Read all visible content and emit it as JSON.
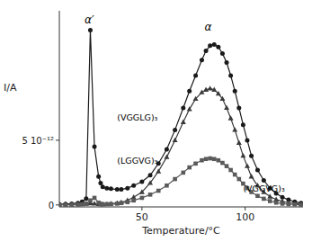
{
  "chart_data": {
    "type": "line",
    "x_label": "Temperature/°C",
    "y_label": "I/A",
    "xlim": [
      10,
      128
    ],
    "ylim": [
      -1.5e-13,
      1.5e-11
    ],
    "xticks": [
      50,
      100
    ],
    "yticks": [
      0,
      {
        "value": 5e-12,
        "label": "5 10⁻¹²"
      }
    ],
    "grid": false,
    "x": [
      10,
      13,
      16,
      19,
      21,
      23,
      25,
      27,
      29,
      30,
      31,
      33,
      35,
      38,
      40,
      43,
      46,
      50,
      54,
      58,
      62,
      66,
      70,
      73,
      76,
      79,
      81,
      83,
      85,
      87,
      89,
      91,
      93,
      95,
      97,
      99,
      101,
      103,
      106,
      109,
      112,
      115,
      118,
      121,
      124,
      127
    ],
    "series": [
      {
        "marker": "circle",
        "color": "#1a1a1a",
        "values": [
          5e-14,
          7e-14,
          1e-13,
          1.5e-13,
          2.5e-13,
          5e-13,
          1.35e-11,
          4.5e-12,
          2.2e-12,
          1.7e-12,
          1.4e-12,
          1.3e-12,
          1.25e-12,
          1.2e-12,
          1.2e-12,
          1.3e-12,
          1.5e-12,
          1.8e-12,
          2.3e-12,
          3.2e-12,
          4.3e-12,
          5.8e-12,
          7.5e-12,
          8.8e-12,
          1e-11,
          1.12e-11,
          1.19e-11,
          1.23e-11,
          1.24e-11,
          1.22e-11,
          1.17e-11,
          1.1e-11,
          1e-11,
          8.8e-12,
          7.5e-12,
          6.2e-12,
          5e-12,
          3.8e-12,
          2.7e-12,
          1.9e-12,
          1.3e-12,
          9e-13,
          6e-13,
          4e-13,
          2.5e-13,
          1.5e-13
        ]
      },
      {
        "marker": "triangle",
        "color": "#3a3a3a",
        "values": [
          2e-14,
          3e-14,
          4e-14,
          6e-14,
          8e-14,
          1e-13,
          1.2e-13,
          1e-13,
          7e-14,
          5e-14,
          5e-14,
          7e-14,
          1e-13,
          1.5e-13,
          2e-13,
          3.5e-13,
          6e-13,
          1e-12,
          1.7e-12,
          2.6e-12,
          3.7e-12,
          5e-12,
          6.4e-12,
          7.4e-12,
          8.2e-12,
          8.7e-12,
          8.9e-12,
          9e-12,
          8.9e-12,
          8.6e-12,
          8.2e-12,
          7.5e-12,
          6.7e-12,
          5.8e-12,
          4.8e-12,
          3.8e-12,
          3e-12,
          2.2e-12,
          1.5e-12,
          1e-12,
          6.5e-13,
          4.2e-13,
          2.8e-13,
          1.8e-13,
          1.2e-13,
          8e-14
        ]
      },
      {
        "marker": "square",
        "color": "#5a5a5a",
        "values": [
          1e-14,
          1e-14,
          2e-14,
          3e-14,
          5e-14,
          9e-14,
          3.5e-13,
          5.5e-13,
          1.8e-13,
          8e-14,
          6e-14,
          6e-14,
          7e-14,
          1e-13,
          1.5e-13,
          2.2e-13,
          3.5e-13,
          5.5e-13,
          8e-13,
          1.1e-12,
          1.5e-12,
          2e-12,
          2.5e-12,
          2.9e-12,
          3.2e-12,
          3.45e-12,
          3.55e-12,
          3.6e-12,
          3.55e-12,
          3.45e-12,
          3.25e-12,
          3e-12,
          2.7e-12,
          2.35e-12,
          2e-12,
          1.65e-12,
          1.3e-12,
          1e-12,
          7e-13,
          4.8e-13,
          3e-13,
          1.8e-13,
          1e-13,
          6e-14,
          4e-14,
          2e-14
        ]
      }
    ],
    "annotations": [
      {
        "text": "(VGGLG)₃",
        "x": 38,
        "y": 6.5e-12
      },
      {
        "text": "(LGGVG)₃",
        "x": 38,
        "y": 3.2e-12
      },
      {
        "text": "(VGGVG)₃",
        "x": 99,
        "y": 1e-12
      },
      {
        "text": "α′",
        "x": 24.5,
        "y": 1.4e-11
      },
      {
        "text": "α",
        "x": 82,
        "y": 1.35e-11
      }
    ]
  }
}
